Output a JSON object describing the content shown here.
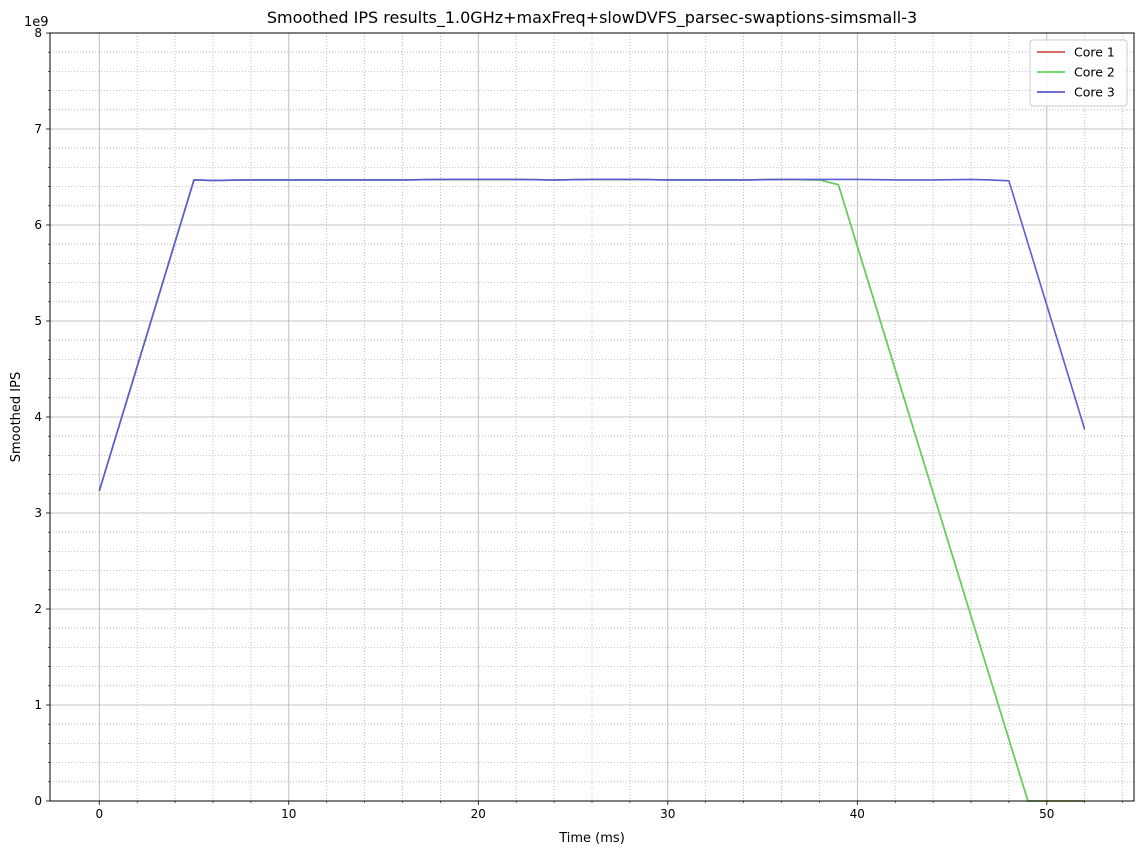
{
  "chart_data": {
    "type": "line",
    "title": "Smoothed IPS results_1.0GHz+maxFreq+slowDVFS_parsec-swaptions-simsmall-3",
    "xlabel": "Time (ms)",
    "ylabel": "Smoothed IPS",
    "y_offset_label": "1e9",
    "xlim": [
      -2.6,
      54.6
    ],
    "ylim": [
      0,
      8
    ],
    "x_ticks": [
      0,
      10,
      20,
      30,
      40,
      50
    ],
    "y_ticks": [
      0,
      1,
      2,
      3,
      4,
      5,
      6,
      7,
      8
    ],
    "grid": {
      "major": "solid",
      "minor": "dotted"
    },
    "legend_position": "top-right",
    "series": [
      {
        "name": "Core 1",
        "color": "#d9534f",
        "x": [
          0,
          5,
          6,
          8,
          10,
          12,
          14,
          16,
          18,
          20,
          22,
          24,
          26,
          28,
          30,
          32,
          34,
          36,
          38,
          39,
          49,
          50,
          51,
          52
        ],
        "y": [
          3.23,
          6.47,
          6.465,
          6.47,
          6.47,
          6.47,
          6.47,
          6.47,
          6.475,
          6.475,
          6.475,
          6.47,
          6.475,
          6.475,
          6.47,
          6.47,
          6.47,
          6.475,
          6.47,
          6.42,
          0.0,
          0.0,
          0.0,
          0.0
        ]
      },
      {
        "name": "Core 2",
        "color": "#5cd65c",
        "x": [
          0,
          5,
          6,
          8,
          10,
          12,
          14,
          16,
          18,
          20,
          22,
          24,
          26,
          28,
          30,
          32,
          34,
          36,
          38,
          39,
          49,
          50,
          51,
          52
        ],
        "y": [
          3.23,
          6.47,
          6.465,
          6.47,
          6.47,
          6.47,
          6.47,
          6.47,
          6.475,
          6.475,
          6.475,
          6.47,
          6.475,
          6.475,
          6.47,
          6.47,
          6.47,
          6.475,
          6.47,
          6.42,
          0.0,
          0.0,
          0.0,
          0.0
        ]
      },
      {
        "name": "Core 3",
        "color": "#5b5bd6",
        "x": [
          0,
          5,
          6,
          8,
          10,
          12,
          14,
          16,
          18,
          20,
          22,
          24,
          26,
          28,
          30,
          32,
          34,
          36,
          38,
          40,
          42,
          44,
          46,
          47,
          48,
          52
        ],
        "y": [
          3.23,
          6.47,
          6.465,
          6.47,
          6.47,
          6.47,
          6.47,
          6.47,
          6.475,
          6.475,
          6.475,
          6.47,
          6.475,
          6.475,
          6.47,
          6.47,
          6.47,
          6.475,
          6.475,
          6.475,
          6.47,
          6.47,
          6.475,
          6.47,
          6.46,
          3.87
        ]
      }
    ]
  }
}
